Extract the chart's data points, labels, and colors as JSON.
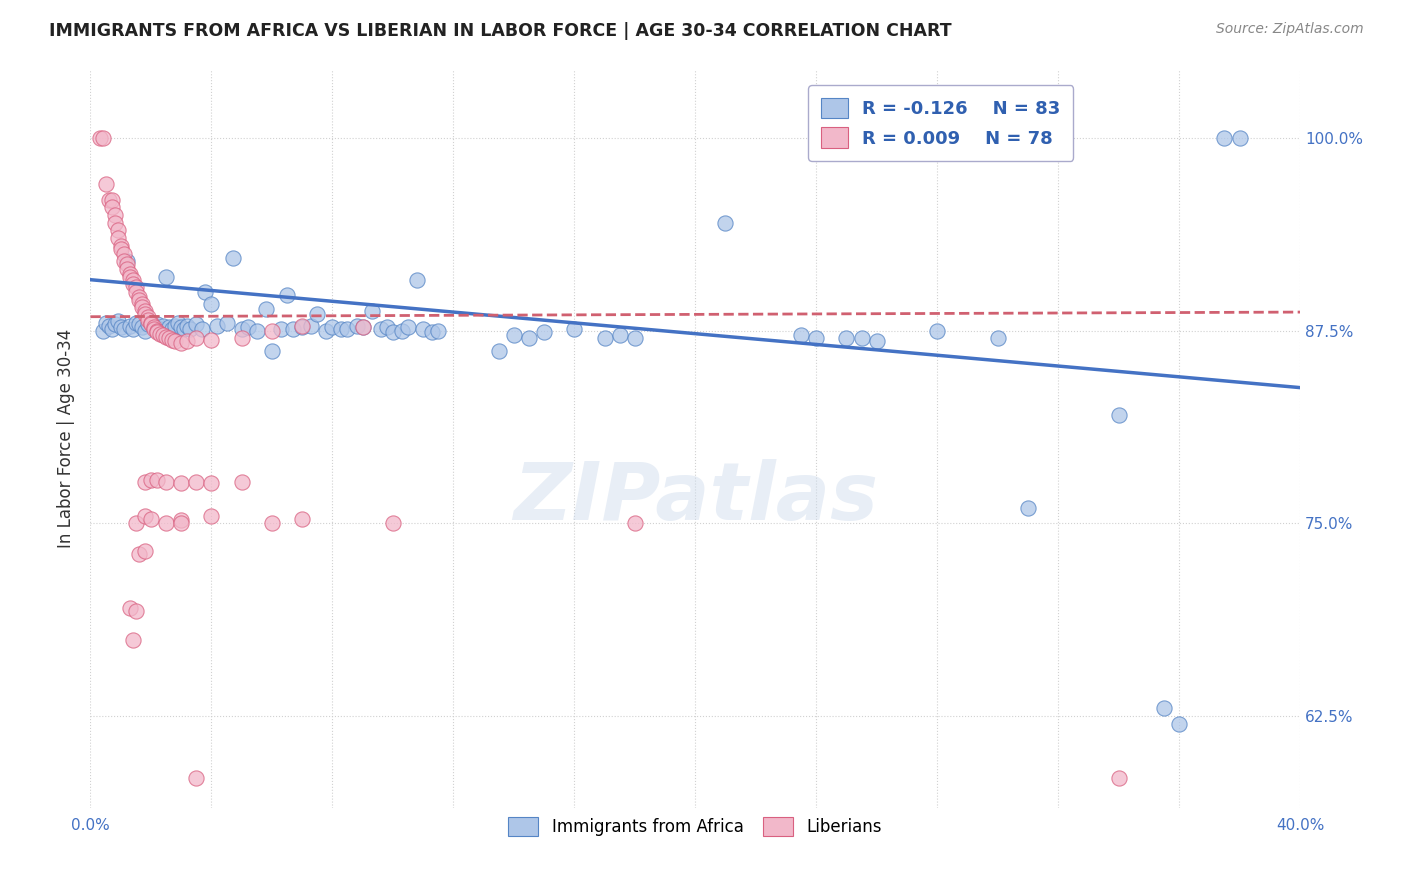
{
  "title": "IMMIGRANTS FROM AFRICA VS LIBERIAN IN LABOR FORCE | AGE 30-34 CORRELATION CHART",
  "source": "Source: ZipAtlas.com",
  "ylabel": "In Labor Force | Age 30-34",
  "xlim": [
    0.0,
    0.4
  ],
  "ylim": [
    0.565,
    1.045
  ],
  "xticks": [
    0.0,
    0.04,
    0.08,
    0.12,
    0.16,
    0.2,
    0.24,
    0.28,
    0.32,
    0.36,
    0.4
  ],
  "xticklabels": [
    "0.0%",
    "",
    "",
    "",
    "",
    "",
    "",
    "",
    "",
    "",
    "40.0%"
  ],
  "yticks": [
    0.625,
    0.75,
    0.875,
    1.0
  ],
  "yticklabels": [
    "62.5%",
    "75.0%",
    "87.5%",
    "100.0%"
  ],
  "legend_R_blue": "-0.126",
  "legend_N_blue": "83",
  "legend_R_pink": "0.009",
  "legend_N_pink": "78",
  "watermark": "ZIPatlas",
  "blue_color": "#aec6e8",
  "pink_color": "#f2b8ca",
  "blue_edge_color": "#5585c5",
  "pink_edge_color": "#d96080",
  "blue_line_color": "#4472c4",
  "pink_line_color": "#d06070",
  "blue_scatter": [
    [
      0.004,
      0.875
    ],
    [
      0.005,
      0.88
    ],
    [
      0.006,
      0.878
    ],
    [
      0.007,
      0.876
    ],
    [
      0.008,
      0.879
    ],
    [
      0.009,
      0.881
    ],
    [
      0.01,
      0.877
    ],
    [
      0.011,
      0.876
    ],
    [
      0.012,
      0.92
    ],
    [
      0.013,
      0.878
    ],
    [
      0.014,
      0.876
    ],
    [
      0.015,
      0.88
    ],
    [
      0.016,
      0.879
    ],
    [
      0.017,
      0.877
    ],
    [
      0.018,
      0.875
    ],
    [
      0.019,
      0.879
    ],
    [
      0.02,
      0.88
    ],
    [
      0.021,
      0.877
    ],
    [
      0.022,
      0.879
    ],
    [
      0.023,
      0.876
    ],
    [
      0.024,
      0.878
    ],
    [
      0.025,
      0.91
    ],
    [
      0.026,
      0.877
    ],
    [
      0.027,
      0.876
    ],
    [
      0.028,
      0.878
    ],
    [
      0.029,
      0.88
    ],
    [
      0.03,
      0.877
    ],
    [
      0.031,
      0.876
    ],
    [
      0.032,
      0.878
    ],
    [
      0.033,
      0.876
    ],
    [
      0.035,
      0.879
    ],
    [
      0.037,
      0.876
    ],
    [
      0.038,
      0.9
    ],
    [
      0.04,
      0.892
    ],
    [
      0.042,
      0.878
    ],
    [
      0.045,
      0.88
    ],
    [
      0.047,
      0.922
    ],
    [
      0.05,
      0.876
    ],
    [
      0.052,
      0.877
    ],
    [
      0.055,
      0.875
    ],
    [
      0.058,
      0.889
    ],
    [
      0.06,
      0.862
    ],
    [
      0.063,
      0.876
    ],
    [
      0.065,
      0.898
    ],
    [
      0.067,
      0.876
    ],
    [
      0.07,
      0.877
    ],
    [
      0.073,
      0.878
    ],
    [
      0.075,
      0.886
    ],
    [
      0.078,
      0.875
    ],
    [
      0.08,
      0.877
    ],
    [
      0.083,
      0.876
    ],
    [
      0.085,
      0.876
    ],
    [
      0.088,
      0.878
    ],
    [
      0.09,
      0.877
    ],
    [
      0.093,
      0.888
    ],
    [
      0.096,
      0.876
    ],
    [
      0.098,
      0.877
    ],
    [
      0.1,
      0.874
    ],
    [
      0.103,
      0.875
    ],
    [
      0.105,
      0.877
    ],
    [
      0.108,
      0.908
    ],
    [
      0.11,
      0.876
    ],
    [
      0.113,
      0.874
    ],
    [
      0.115,
      0.875
    ],
    [
      0.135,
      0.862
    ],
    [
      0.14,
      0.872
    ],
    [
      0.145,
      0.87
    ],
    [
      0.15,
      0.874
    ],
    [
      0.16,
      0.876
    ],
    [
      0.17,
      0.87
    ],
    [
      0.175,
      0.872
    ],
    [
      0.18,
      0.87
    ],
    [
      0.21,
      0.945
    ],
    [
      0.235,
      0.872
    ],
    [
      0.24,
      0.87
    ],
    [
      0.25,
      0.87
    ],
    [
      0.255,
      0.87
    ],
    [
      0.26,
      0.868
    ],
    [
      0.28,
      0.875
    ],
    [
      0.3,
      0.87
    ],
    [
      0.31,
      0.76
    ],
    [
      0.34,
      0.82
    ],
    [
      0.355,
      0.63
    ],
    [
      0.36,
      0.62
    ],
    [
      0.375,
      1.0
    ],
    [
      0.38,
      1.0
    ]
  ],
  "pink_scatter": [
    [
      0.003,
      1.0
    ],
    [
      0.004,
      1.0
    ],
    [
      0.005,
      0.97
    ],
    [
      0.006,
      0.96
    ],
    [
      0.007,
      0.96
    ],
    [
      0.007,
      0.955
    ],
    [
      0.008,
      0.95
    ],
    [
      0.008,
      0.945
    ],
    [
      0.009,
      0.94
    ],
    [
      0.009,
      0.935
    ],
    [
      0.01,
      0.93
    ],
    [
      0.01,
      0.928
    ],
    [
      0.011,
      0.925
    ],
    [
      0.011,
      0.92
    ],
    [
      0.012,
      0.918
    ],
    [
      0.012,
      0.915
    ],
    [
      0.013,
      0.912
    ],
    [
      0.013,
      0.91
    ],
    [
      0.014,
      0.908
    ],
    [
      0.014,
      0.905
    ],
    [
      0.015,
      0.903
    ],
    [
      0.015,
      0.9
    ],
    [
      0.016,
      0.897
    ],
    [
      0.016,
      0.895
    ],
    [
      0.017,
      0.892
    ],
    [
      0.017,
      0.89
    ],
    [
      0.018,
      0.888
    ],
    [
      0.018,
      0.886
    ],
    [
      0.019,
      0.884
    ],
    [
      0.019,
      0.882
    ],
    [
      0.02,
      0.88
    ],
    [
      0.02,
      0.879
    ],
    [
      0.021,
      0.877
    ],
    [
      0.021,
      0.876
    ],
    [
      0.022,
      0.875
    ],
    [
      0.022,
      0.874
    ],
    [
      0.023,
      0.873
    ],
    [
      0.024,
      0.872
    ],
    [
      0.025,
      0.871
    ],
    [
      0.026,
      0.87
    ],
    [
      0.027,
      0.869
    ],
    [
      0.028,
      0.868
    ],
    [
      0.03,
      0.867
    ],
    [
      0.032,
      0.868
    ],
    [
      0.035,
      0.87
    ],
    [
      0.04,
      0.869
    ],
    [
      0.05,
      0.87
    ],
    [
      0.06,
      0.875
    ],
    [
      0.07,
      0.878
    ],
    [
      0.09,
      0.877
    ],
    [
      0.015,
      0.75
    ],
    [
      0.018,
      0.755
    ],
    [
      0.02,
      0.753
    ],
    [
      0.025,
      0.75
    ],
    [
      0.03,
      0.752
    ],
    [
      0.016,
      0.73
    ],
    [
      0.018,
      0.732
    ],
    [
      0.013,
      0.695
    ],
    [
      0.015,
      0.693
    ],
    [
      0.018,
      0.777
    ],
    [
      0.02,
      0.778
    ],
    [
      0.022,
      0.778
    ],
    [
      0.025,
      0.777
    ],
    [
      0.03,
      0.776
    ],
    [
      0.035,
      0.777
    ],
    [
      0.04,
      0.776
    ],
    [
      0.05,
      0.777
    ],
    [
      0.014,
      0.674
    ],
    [
      0.03,
      0.75
    ],
    [
      0.04,
      0.755
    ],
    [
      0.06,
      0.75
    ],
    [
      0.07,
      0.753
    ],
    [
      0.1,
      0.75
    ],
    [
      0.18,
      0.75
    ],
    [
      0.035,
      0.585
    ],
    [
      0.34,
      0.585
    ]
  ],
  "blue_line_x": [
    0.0,
    0.4
  ],
  "blue_line_y": [
    0.908,
    0.838
  ],
  "pink_line_x": [
    0.0,
    0.4
  ],
  "pink_line_y": [
    0.884,
    0.887
  ]
}
